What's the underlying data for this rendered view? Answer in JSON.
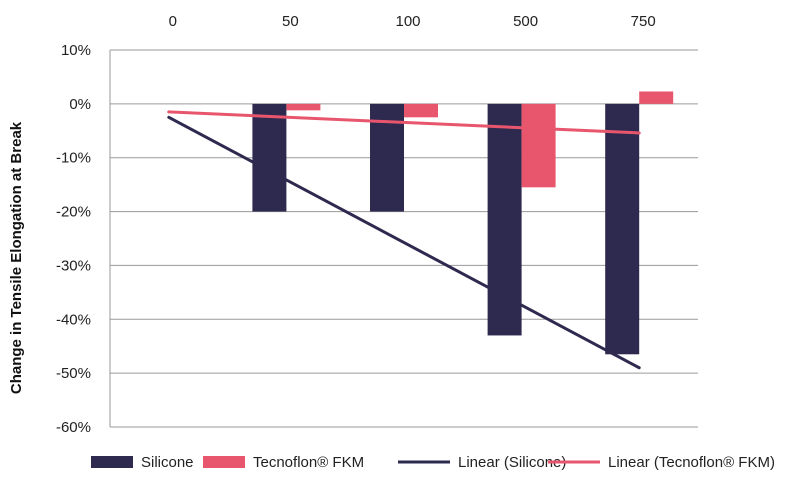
{
  "chart_data": {
    "type": "bar",
    "categories": [
      "0",
      "50",
      "100",
      "500",
      "750"
    ],
    "ylabel": "Change in Tensile Elongation at Break",
    "xlabel": "",
    "ylim": [
      -60,
      10
    ],
    "yticks": [
      "10%",
      "0%",
      "-10%",
      "-20%",
      "-30%",
      "-40%",
      "-50%",
      "-60%"
    ],
    "grid": true,
    "x_axis_position": "top",
    "legend_position": "bottom",
    "series": [
      {
        "name": "Silicone",
        "kind": "bar",
        "color": "#2e2a4f",
        "values": [
          0,
          -20,
          -20,
          -43,
          -46.5
        ]
      },
      {
        "name": "Tecnoflon® FKM",
        "kind": "bar",
        "color": "#e8566e",
        "values": [
          0,
          -1.2,
          -2.5,
          -15.5,
          2.3
        ]
      },
      {
        "name": "Linear (Silicone)",
        "kind": "line",
        "color": "#2e2a4f",
        "from": -2.5,
        "to": -49
      },
      {
        "name": "Linear (Tecnoflon® FKM)",
        "kind": "line",
        "color": "#e8566e",
        "from": -1.5,
        "to": -5.4
      }
    ]
  }
}
